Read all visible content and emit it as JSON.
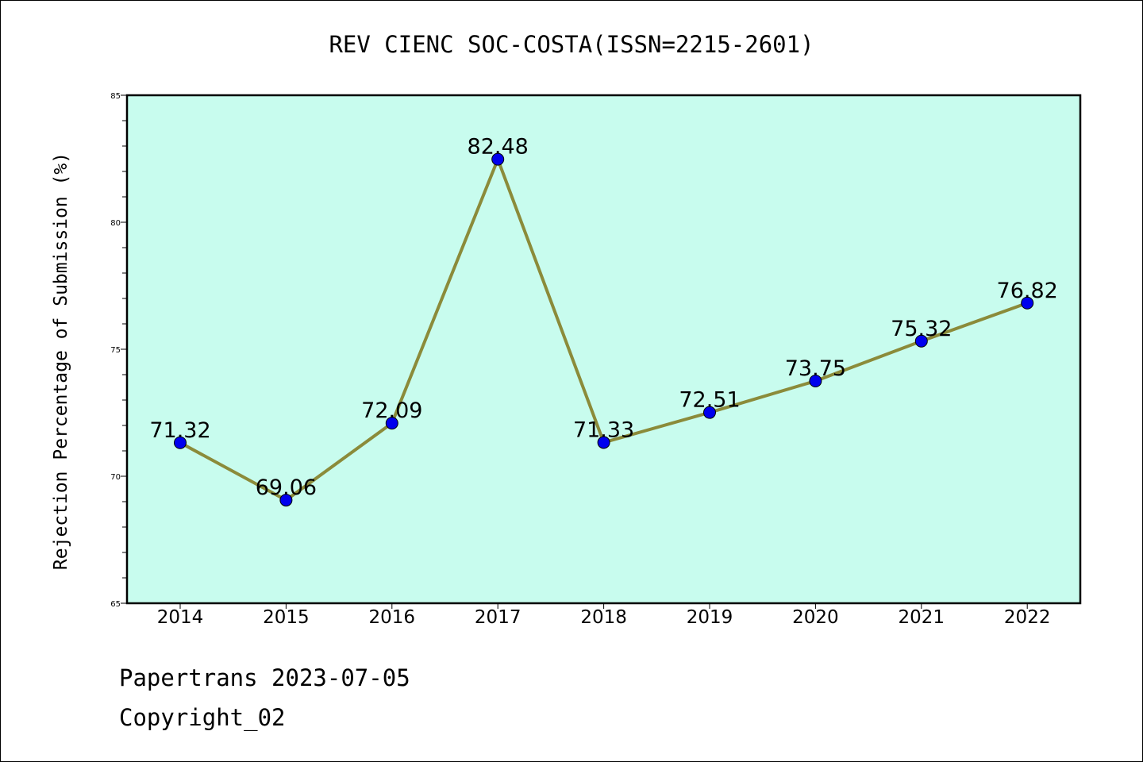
{
  "chart_data": {
    "type": "line",
    "title": "REV CIENC SOC-COSTA(ISSN=2215-2601)",
    "xlabel": "",
    "ylabel": "Rejection Percentage of Submission (%)",
    "categories": [
      "2014",
      "2015",
      "2016",
      "2017",
      "2018",
      "2019",
      "2020",
      "2021",
      "2022"
    ],
    "values": [
      71.32,
      69.06,
      72.09,
      82.48,
      71.33,
      72.51,
      73.75,
      75.32,
      76.82
    ],
    "data_labels": [
      "71.32",
      "69.06",
      "72.09",
      "82.48",
      "71.33",
      "72.51",
      "73.75",
      "75.32",
      "76.82"
    ],
    "ylim": [
      65,
      85
    ],
    "yticks": [
      65,
      70,
      75,
      80,
      85
    ],
    "grid": false,
    "legend": "none",
    "colors": {
      "plot_background": "#c8fcee",
      "line": "#8b8b3a",
      "marker": "#0000ee"
    }
  },
  "footer": {
    "line1": "Papertrans 2023-07-05",
    "line2": "Copyright_02"
  }
}
